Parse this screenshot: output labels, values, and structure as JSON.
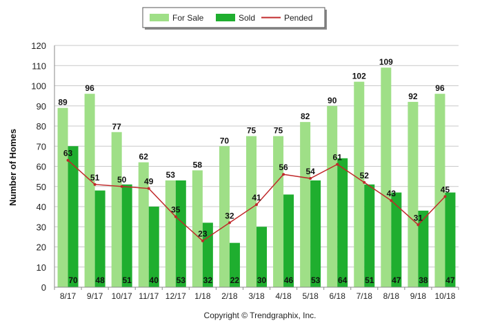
{
  "chart_data": {
    "type": "bar",
    "ylabel": "Number of Homes",
    "ylim": [
      0,
      120
    ],
    "yticks": [
      0,
      10,
      20,
      30,
      40,
      50,
      60,
      70,
      80,
      90,
      100,
      110,
      120
    ],
    "grid": "horizontal",
    "legend_position": "top-center",
    "categories": [
      "8/17",
      "9/17",
      "10/17",
      "11/17",
      "12/17",
      "1/18",
      "2/18",
      "3/18",
      "4/18",
      "5/18",
      "6/18",
      "7/18",
      "8/18",
      "9/18",
      "10/18"
    ],
    "series": [
      {
        "name": "For Sale",
        "type": "bar",
        "color": "#9fdf87",
        "values": [
          89,
          96,
          77,
          62,
          53,
          58,
          70,
          75,
          75,
          82,
          90,
          102,
          109,
          92,
          96
        ]
      },
      {
        "name": "Sold",
        "type": "bar",
        "color": "#1fae2f",
        "values": [
          70,
          48,
          51,
          40,
          53,
          32,
          22,
          30,
          46,
          53,
          64,
          51,
          47,
          38,
          47
        ]
      },
      {
        "name": "Pended",
        "type": "line",
        "color": "#c0282a",
        "values": [
          63,
          51,
          50,
          49,
          35,
          23,
          32,
          41,
          56,
          54,
          61,
          52,
          43,
          31,
          45
        ]
      }
    ]
  },
  "copyright": "Copyright © Trendgraphix, Inc."
}
